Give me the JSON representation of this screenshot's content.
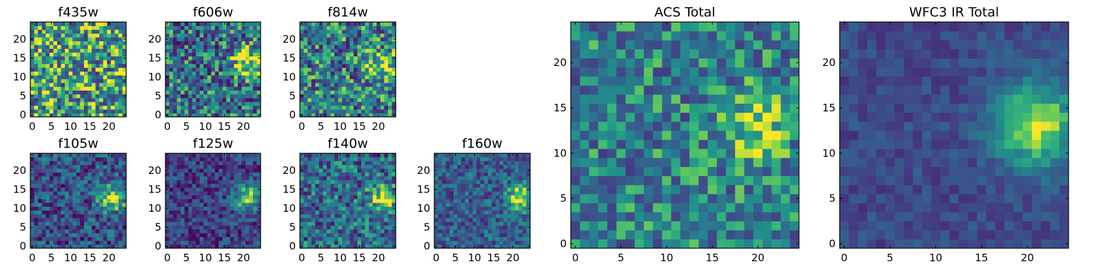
{
  "figure": {
    "description_note": "",
    "colormap": "viridis"
  },
  "chart_data": [
    {
      "type": "heatmap",
      "title": "f435w",
      "grid_size": 25,
      "x_ticks": [
        "0",
        "5",
        "10",
        "15",
        "20"
      ],
      "y_ticks": [
        "0",
        "5",
        "10",
        "15",
        "20"
      ],
      "xlim": [
        -0.5,
        24.5
      ],
      "ylim": [
        -0.5,
        24.5
      ],
      "peak": null,
      "noise": 0.55,
      "base": 0.62
    },
    {
      "type": "heatmap",
      "title": "f606w",
      "grid_size": 25,
      "x_ticks": [
        "0",
        "5",
        "10",
        "15",
        "20"
      ],
      "y_ticks": [
        "0",
        "5",
        "10",
        "15",
        "20"
      ],
      "xlim": [
        -0.5,
        24.5
      ],
      "ylim": [
        -0.5,
        24.5
      ],
      "peak": {
        "x": 21,
        "y": 14,
        "sigma": 2.6,
        "amplitude": 0.55
      },
      "noise": 0.5,
      "base": 0.45
    },
    {
      "type": "heatmap",
      "title": "f814w",
      "grid_size": 25,
      "x_ticks": [
        "0",
        "5",
        "10",
        "15",
        "20"
      ],
      "y_ticks": [
        "0",
        "5",
        "10",
        "15",
        "20"
      ],
      "xlim": [
        -0.5,
        24.5
      ],
      "ylim": [
        -0.5,
        24.5
      ],
      "peak": {
        "x": 21,
        "y": 13,
        "sigma": 2.4,
        "amplitude": 0.55
      },
      "noise": 0.5,
      "base": 0.5
    },
    {
      "type": "heatmap",
      "title": "f105w",
      "grid_size": 25,
      "x_ticks": [
        "0",
        "5",
        "10",
        "15",
        "20"
      ],
      "y_ticks": [
        "0",
        "5",
        "10",
        "15",
        "20"
      ],
      "xlim": [
        -0.5,
        24.5
      ],
      "ylim": [
        -0.5,
        24.5
      ],
      "peak": {
        "x": 21,
        "y": 13,
        "sigma": 2.6,
        "amplitude": 0.6
      },
      "noise": 0.38,
      "base": 0.32
    },
    {
      "type": "heatmap",
      "title": "f125w",
      "grid_size": 25,
      "x_ticks": [
        "0",
        "5",
        "10",
        "15",
        "20"
      ],
      "y_ticks": [
        "0",
        "5",
        "10",
        "15",
        "20"
      ],
      "xlim": [
        -0.5,
        24.5
      ],
      "ylim": [
        -0.5,
        24.5
      ],
      "peak": {
        "x": 21,
        "y": 13,
        "sigma": 2.6,
        "amplitude": 0.62
      },
      "noise": 0.3,
      "base": 0.25
    },
    {
      "type": "heatmap",
      "title": "f140w",
      "grid_size": 25,
      "x_ticks": [
        "0",
        "5",
        "10",
        "15",
        "20"
      ],
      "y_ticks": [
        "0",
        "5",
        "10",
        "15",
        "20"
      ],
      "xlim": [
        -0.5,
        24.5
      ],
      "ylim": [
        -0.5,
        24.5
      ],
      "peak": {
        "x": 21,
        "y": 13,
        "sigma": 2.4,
        "amplitude": 0.5
      },
      "noise": 0.42,
      "base": 0.42
    },
    {
      "type": "heatmap",
      "title": "f160w",
      "grid_size": 25,
      "x_ticks": [
        "0",
        "5",
        "10",
        "15",
        "20"
      ],
      "y_ticks": [
        "0",
        "5",
        "10",
        "15",
        "20"
      ],
      "xlim": [
        -0.5,
        24.5
      ],
      "ylim": [
        -0.5,
        24.5
      ],
      "peak": {
        "x": 22,
        "y": 13,
        "sigma": 2.3,
        "amplitude": 0.62
      },
      "noise": 0.32,
      "base": 0.38
    },
    {
      "type": "heatmap",
      "title": "ACS Total",
      "grid_size": 25,
      "x_ticks": [
        "0",
        "5",
        "10",
        "15",
        "20"
      ],
      "y_ticks": [
        "0",
        "5",
        "10",
        "15",
        "20"
      ],
      "xlim": [
        -0.5,
        24.5
      ],
      "ylim": [
        -0.5,
        24.5
      ],
      "peak": {
        "x": 20,
        "y": 13,
        "sigma": 2.4,
        "amplitude": 0.45
      },
      "noise": 0.38,
      "base": 0.52
    },
    {
      "type": "heatmap",
      "title": "WFC3 IR Total",
      "grid_size": 25,
      "x_ticks": [
        "0",
        "5",
        "10",
        "15",
        "20"
      ],
      "y_ticks": [
        "0",
        "5",
        "10",
        "15",
        "20"
      ],
      "xlim": [
        -0.5,
        24.5
      ],
      "ylim": [
        -0.5,
        24.5
      ],
      "peak": {
        "x": 21,
        "y": 13,
        "sigma": 3.4,
        "amplitude": 0.65
      },
      "noise": 0.14,
      "base": 0.28
    }
  ]
}
